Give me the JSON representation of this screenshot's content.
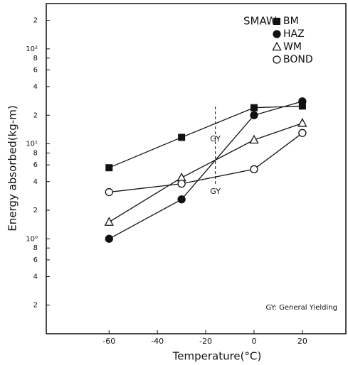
{
  "chart_data": {
    "type": "line",
    "x_label": "Temperature(°C)",
    "y_label": "Energy absorbed(kg-m)",
    "legend_title": "SMAW",
    "legend_position": "upper right",
    "log_y": true,
    "xlim": [
      -86,
      38
    ],
    "xticks": [
      -60,
      -40,
      -20,
      0,
      20
    ],
    "ylim": [
      0.1,
      300
    ],
    "yticks": [
      {
        "value": 200,
        "label": "2"
      },
      {
        "value": 100,
        "label": "10²"
      },
      {
        "value": 80,
        "label": "8"
      },
      {
        "value": 60,
        "label": "6"
      },
      {
        "value": 40,
        "label": "4"
      },
      {
        "value": 20,
        "label": "2"
      },
      {
        "value": 10,
        "label": "10¹"
      },
      8,
      6,
      4,
      2,
      {
        "value": 1,
        "label": "10⁰"
      },
      {
        "value": 0.8,
        "label": "8"
      },
      {
        "value": 0.6,
        "label": "6"
      },
      {
        "value": 0.4,
        "label": "4"
      },
      {
        "value": 0.2,
        "label": "2"
      }
    ],
    "x": [
      -60,
      -30,
      0,
      20
    ],
    "series": [
      {
        "name": "BM",
        "color": "#111",
        "marker": "square-filled",
        "values": [
          5.6,
          11.7,
          24,
          25
        ]
      },
      {
        "name": "HAZ",
        "color": "#111",
        "marker": "circle-filled",
        "values": [
          1.0,
          2.6,
          20,
          28
        ]
      },
      {
        "name": "WM",
        "color": "#111",
        "marker": "triangle-open",
        "values": [
          1.5,
          4.4,
          11,
          16.5
        ]
      },
      {
        "name": "BOND",
        "color": "#111",
        "marker": "circle-open",
        "values": [
          3.1,
          3.8,
          5.4,
          13
        ]
      }
    ],
    "gy_x": -16,
    "gy_label": "GY",
    "note": "GY: General Yielding"
  }
}
